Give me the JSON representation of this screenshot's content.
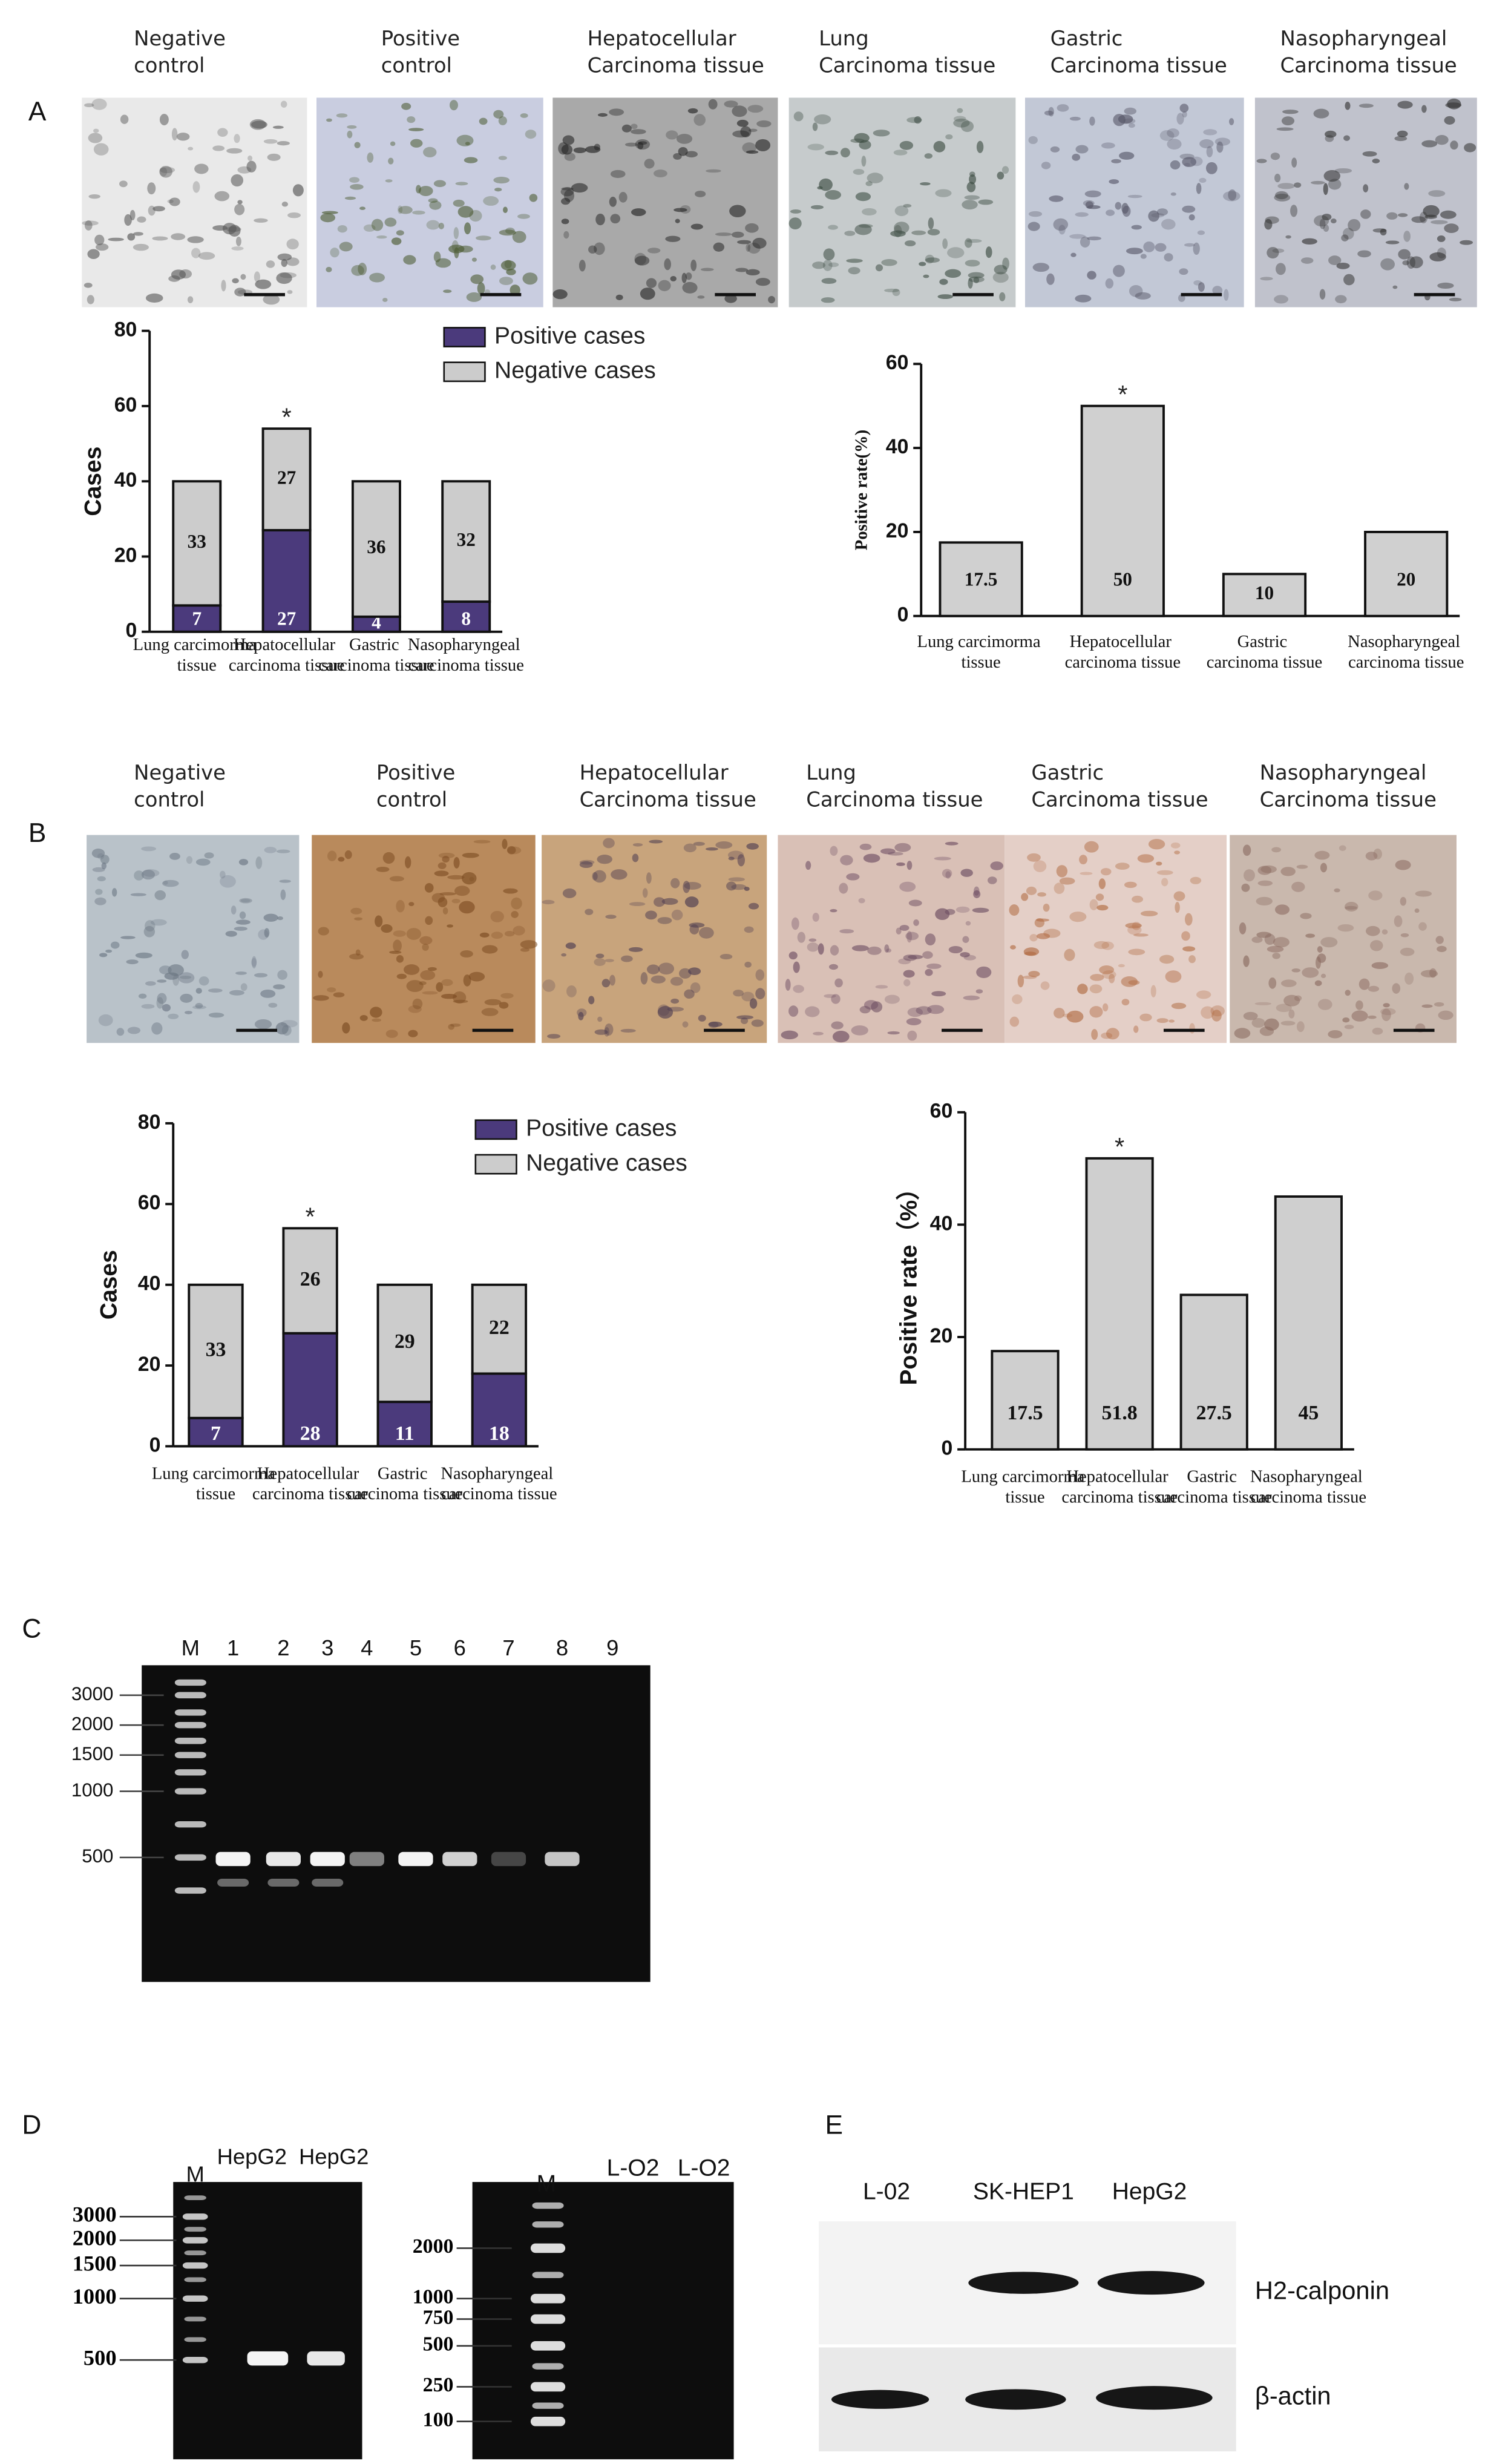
{
  "panels": [
    "A",
    "B",
    "C",
    "D",
    "E"
  ],
  "ihc_a": {
    "captions": [
      "Negative control",
      "Positive control",
      "Hepatocellular Carcinoma tissue",
      "Lung Carcinoma tissue",
      "Gastric Carcinoma tissue",
      "Nasopharyngeal Carcinoma tissue"
    ]
  },
  "ihc_b": {
    "captions": [
      "Negative control",
      "Positive control",
      "Hepatocellular Carcinoma tissue",
      "Lung Carcinoma tissue",
      "Gastric Carcinoma tissue",
      "Nasopharyngeal Carcinoma tissue"
    ]
  },
  "chart_data": [
    {
      "type": "stacked_bar",
      "y_label": "Cases",
      "categories": [
        "Lung carcimorma tissue",
        "Hepatocellular carcinoma tissue",
        "Gastric carcinoma tissue",
        "Nasopharyngeal carcinoma tissue"
      ],
      "series": [
        {
          "name": "Positive cases",
          "color": "#4b3a7c",
          "values": [
            7,
            27,
            4,
            8
          ]
        },
        {
          "name": "Negative cases",
          "color": "#cccccc",
          "values": [
            33,
            27,
            36,
            32
          ]
        }
      ],
      "ylim": [
        0,
        80
      ],
      "yticks": [
        0,
        20,
        40,
        60,
        80
      ],
      "annotations": [
        {
          "text": "*",
          "x": "Hepatocellular carcinoma tissue"
        }
      ]
    },
    {
      "type": "bar",
      "y_label": "Positive rate(%)",
      "categories": [
        "Lung carcimorma tissue",
        "Hepatocellular carcinoma tissue",
        "Gastric carcinoma tissue",
        "Nasopharyngeal carcinoma tissue"
      ],
      "values": [
        17.5,
        50,
        10,
        20
      ],
      "color": "#d0d0d0",
      "ylim": [
        0,
        60
      ],
      "yticks": [
        0,
        20,
        40,
        60
      ],
      "annotations": [
        {
          "text": "*",
          "x": "Hepatocellular carcinoma tissue"
        }
      ]
    },
    {
      "type": "stacked_bar",
      "y_label": "Cases",
      "categories": [
        "Lung carcimorma tissue",
        "Hepatocellular carcinoma tissue",
        "Gastric carcinoma tissue",
        "Nasopharyngeal carcinoma tissue"
      ],
      "series": [
        {
          "name": "Positive cases",
          "color": "#4b3a7c",
          "values": [
            7,
            28,
            11,
            18
          ]
        },
        {
          "name": "Negative cases",
          "color": "#cccccc",
          "values": [
            33,
            26,
            29,
            22
          ]
        }
      ],
      "ylim": [
        0,
        80
      ],
      "yticks": [
        0,
        20,
        40,
        60,
        80
      ],
      "annotations": [
        {
          "text": "*",
          "x": "Hepatocellular carcinoma tissue"
        }
      ]
    },
    {
      "type": "bar",
      "y_label": "Positive rate（%）",
      "categories": [
        "Lung carcimorma tissue",
        "Hepatocellular carcinoma tissue",
        "Gastric carcinoma tissue",
        "Nasopharyngeal carcinoma tissue"
      ],
      "values": [
        17.5,
        51.8,
        27.5,
        45
      ],
      "color": "#cfcfcf",
      "ylim": [
        0,
        60
      ],
      "yticks": [
        0,
        20,
        40,
        60
      ],
      "annotations": [
        {
          "text": "*",
          "x": "Hepatocellular carcinoma tissue"
        }
      ]
    }
  ],
  "gel_c": {
    "lanes": [
      "M",
      "1",
      "2",
      "3",
      "4",
      "5",
      "6",
      "7",
      "8",
      "9"
    ],
    "markers": [
      "3000",
      "2000",
      "1500",
      "1000",
      "500"
    ]
  },
  "gel_d": {
    "left": {
      "lanes": [
        "M",
        "HepG2",
        "HepG2"
      ],
      "markers": [
        "3000",
        "2000",
        "1500",
        "1000",
        "500"
      ]
    },
    "right": {
      "lanes": [
        "M",
        "L-O2",
        "L-O2"
      ],
      "markers": [
        "2000",
        "1000",
        "750",
        "500",
        "250",
        "100"
      ]
    }
  },
  "blot_e": {
    "lanes": [
      "L-02",
      "SK-HEP1",
      "HepG2"
    ],
    "proteins": [
      "H2-calponin",
      "β-actin"
    ]
  }
}
